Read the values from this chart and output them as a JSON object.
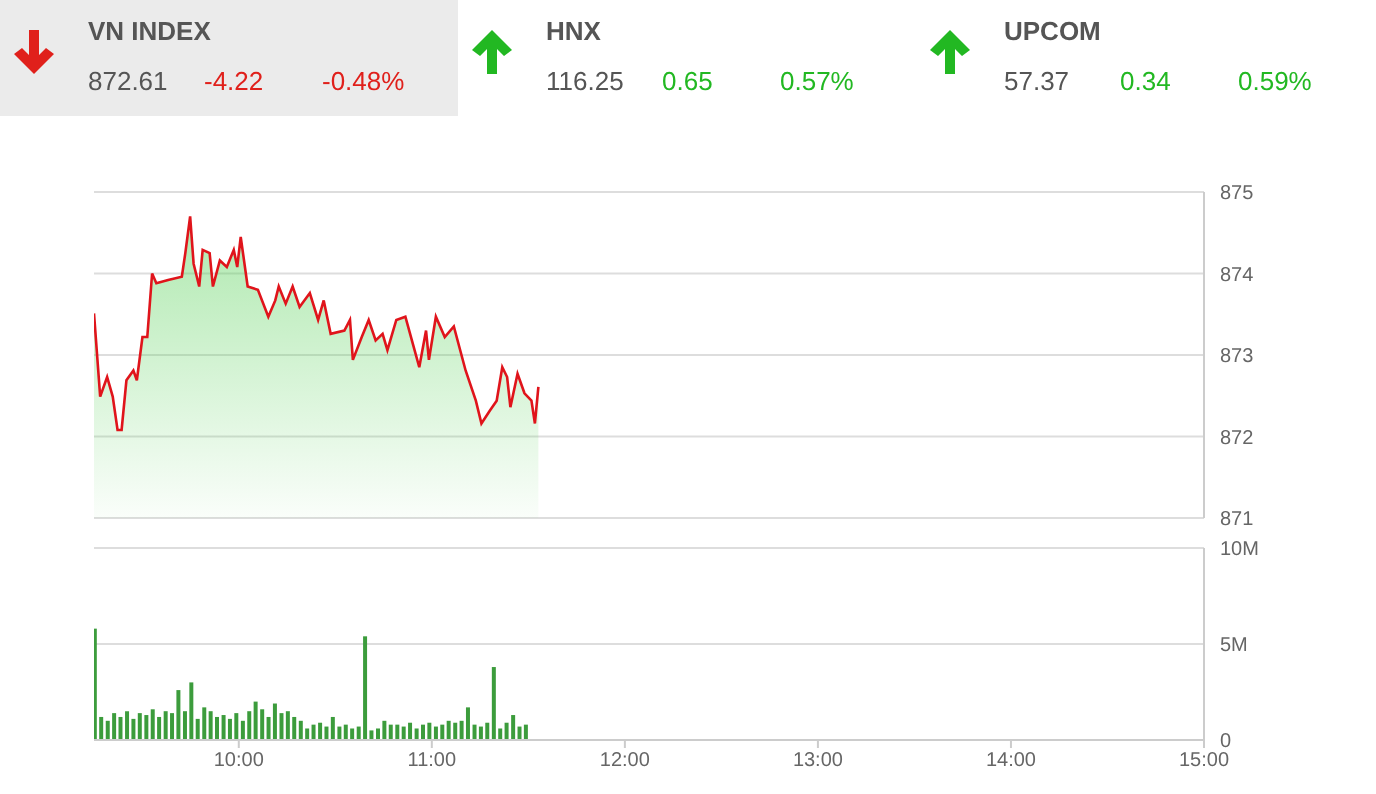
{
  "chart_data": [
    {
      "type": "other",
      "title": "VN INDEX",
      "annotations": [
        "872.61",
        "-4.22",
        "-0.48%"
      ],
      "colors": [
        "#555555",
        "#e0201b",
        "#e0201b"
      ]
    },
    {
      "type": "other",
      "title": "HNX",
      "annotations": [
        "116.25",
        "0.65",
        "0.57%"
      ],
      "colors": [
        "#555555",
        "#22b822",
        "#22b822"
      ]
    },
    {
      "type": "other",
      "title": "UPCOM",
      "annotations": [
        "57.37",
        "0.34",
        "0.59%"
      ],
      "colors": [
        "#555555",
        "#22b822",
        "#22b822"
      ]
    },
    {
      "type": "area",
      "x": [
        9.25,
        9.282,
        9.318,
        9.347,
        9.372,
        9.393,
        9.418,
        9.454,
        9.472,
        9.501,
        9.526,
        9.551,
        9.573,
        9.634,
        9.705,
        9.723,
        9.748,
        9.766,
        9.795,
        9.813,
        9.849,
        9.866,
        9.902,
        9.938,
        9.974,
        9.992,
        10.01,
        10.046,
        10.099,
        10.153,
        10.189,
        10.207,
        10.243,
        10.279,
        10.315,
        10.368,
        10.411,
        10.44,
        10.476,
        10.547,
        10.576,
        10.591,
        10.637,
        10.673,
        10.709,
        10.745,
        10.77,
        10.816,
        10.863,
        10.906,
        10.935,
        10.97,
        10.985,
        11.021,
        11.067,
        11.114,
        11.175,
        11.228,
        11.257,
        11.301,
        11.336,
        11.365,
        11.39,
        11.407,
        11.444,
        11.48,
        11.516,
        11.534,
        11.552
      ],
      "series": [
        {
          "color": "#e0141b",
          "values": [
            873.51,
            872.49,
            872.73,
            872.49,
            872.08,
            872.08,
            872.69,
            872.81,
            872.69,
            873.22,
            873.22,
            874.0,
            873.88,
            873.92,
            873.96,
            874.25,
            874.7,
            874.12,
            873.84,
            874.29,
            874.25,
            873.84,
            874.16,
            874.08,
            874.29,
            874.08,
            874.45,
            873.84,
            873.8,
            873.47,
            873.67,
            873.84,
            873.63,
            873.84,
            873.59,
            873.76,
            873.43,
            873.67,
            873.26,
            873.3,
            873.43,
            872.94,
            873.22,
            873.43,
            873.18,
            873.26,
            873.06,
            873.43,
            873.47,
            873.1,
            872.85,
            873.3,
            872.94,
            873.47,
            873.22,
            873.35,
            872.81,
            872.44,
            872.16,
            872.32,
            872.44,
            872.85,
            872.73,
            872.36,
            872.77,
            872.53,
            872.44,
            872.16,
            872.61
          ]
        }
      ],
      "xlim": [
        9.25,
        15
      ],
      "ylim": [
        871,
        875
      ],
      "yticks": [
        871,
        872,
        873,
        874,
        875
      ],
      "xticks": [
        {
          "value": 10,
          "label": null
        },
        {
          "value": 11,
          "label": null
        },
        {
          "value": 12,
          "label": null
        },
        {
          "value": 13,
          "label": null
        },
        {
          "value": 14,
          "label": null
        },
        {
          "value": 15,
          "label": null
        }
      ],
      "grid": "y",
      "tick_labels": "y"
    },
    {
      "type": "bar",
      "x": [
        9.25,
        9.283,
        9.317,
        9.35,
        9.383,
        9.417,
        9.45,
        9.483,
        9.517,
        9.55,
        9.583,
        9.617,
        9.65,
        9.683,
        9.717,
        9.75,
        9.783,
        9.817,
        9.85,
        9.883,
        9.917,
        9.95,
        9.983,
        10.017,
        10.05,
        10.083,
        10.117,
        10.15,
        10.183,
        10.217,
        10.25,
        10.283,
        10.317,
        10.35,
        10.383,
        10.417,
        10.45,
        10.483,
        10.517,
        10.55,
        10.583,
        10.617,
        10.65,
        10.683,
        10.717,
        10.75,
        10.783,
        10.817,
        10.85,
        10.883,
        10.917,
        10.95,
        10.983,
        11.017,
        11.05,
        11.083,
        11.117,
        11.15,
        11.183,
        11.217,
        11.25,
        11.283,
        11.317,
        11.35,
        11.383,
        11.417,
        11.45,
        11.483
      ],
      "series": [
        {
          "color": "#3c9c3c",
          "values": [
            5.8,
            1.2,
            1.0,
            1.4,
            1.2,
            1.5,
            1.1,
            1.4,
            1.3,
            1.6,
            1.2,
            1.5,
            1.4,
            2.6,
            1.5,
            3.0,
            1.1,
            1.7,
            1.5,
            1.2,
            1.3,
            1.1,
            1.4,
            1.0,
            1.5,
            2.0,
            1.6,
            1.2,
            1.9,
            1.4,
            1.5,
            1.2,
            1.0,
            0.6,
            0.8,
            0.9,
            0.7,
            1.2,
            0.7,
            0.8,
            0.6,
            0.7,
            5.4,
            0.5,
            0.6,
            1.0,
            0.8,
            0.8,
            0.7,
            0.9,
            0.6,
            0.8,
            0.9,
            0.7,
            0.8,
            1.0,
            0.9,
            1.0,
            1.7,
            0.8,
            0.7,
            0.9,
            3.8,
            0.6,
            0.9,
            1.3,
            0.7,
            0.8
          ]
        }
      ],
      "xlim": [
        9.25,
        15
      ],
      "ylim": [
        0,
        10
      ],
      "yticks": [
        0,
        {
          "value": 5,
          "label": "5M"
        },
        {
          "value": 10,
          "label": "10M"
        }
      ],
      "xticks": [
        {
          "value": 10,
          "label": "10:00"
        },
        {
          "value": 11,
          "label": "11:00"
        },
        {
          "value": 12,
          "label": "12:00"
        },
        {
          "value": 13,
          "label": "13:00"
        },
        {
          "value": 14,
          "label": "14:00"
        },
        {
          "value": 15,
          "label": "15:00"
        }
      ],
      "grid": "y"
    }
  ]
}
